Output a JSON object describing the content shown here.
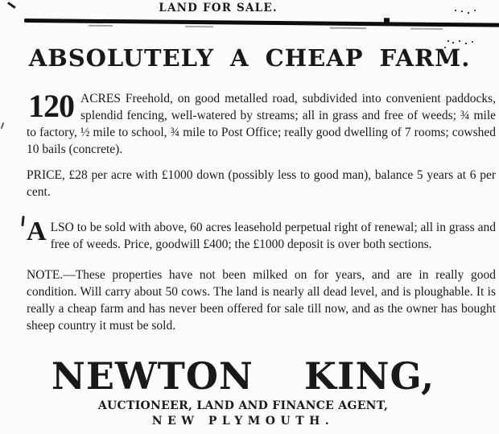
{
  "header": {
    "section_title": "LAND FOR SALE."
  },
  "headline": "ABSOLUTELY A CHEAP FARM.",
  "paragraphs": {
    "acres": {
      "lead": "120",
      "text": "ACRES Freehold, on good metalled road, subdivided into convenient paddocks, splendid fencing, well-watered by streams; all in grass and free of weeds; ¾ mile to factory, ½ mile to school, ¾ mile to Post Office; really good dwelling of 7 rooms; cowshed 10 bails (concrete)."
    },
    "price": "PRICE, £28 per acre with £1000 down (possibly less to good man), balance 5 years at 6 per cent.",
    "also": {
      "lead": "A",
      "text": "LSO to be sold with above, 60 acres leasehold perpetual right of renewal; all in grass and free of weeds. Price, goodwill £400; the £1000 deposit is over both sections."
    },
    "note": "NOTE.—These properties have not been milked on for years, and are in really good condition. Will carry about 50 cows. The land is nearly all dead level, and is ploughable. It is really a cheap farm and has never been offered for sale till now, and as the owner has bought sheep country it must be sold."
  },
  "signature": {
    "name": "NEWTON KING,",
    "role": "AUCTIONEER, LAND AND FINANCE AGENT,",
    "city": "NEW PLYMOUTH."
  },
  "colors": {
    "ink": "#191919",
    "paper": "#fcfcfb",
    "rule": "#0e0e0e"
  }
}
